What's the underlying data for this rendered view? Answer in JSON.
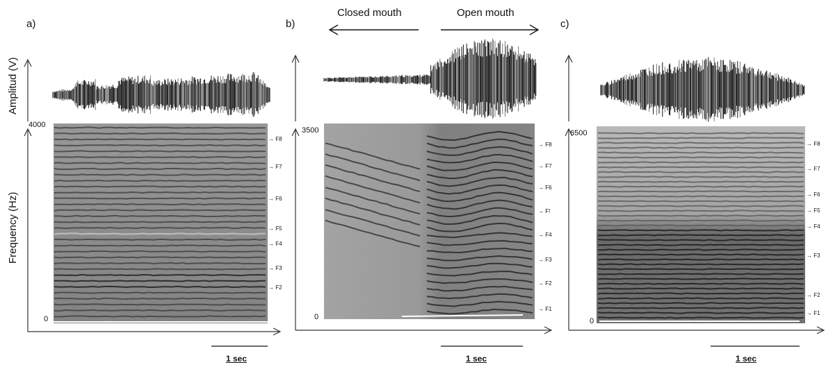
{
  "panels": [
    {
      "letter": "a)",
      "freq_top": "4000",
      "freq_bottom": "0",
      "formants": [
        "F8",
        "F7",
        "F6",
        "F5",
        "F4",
        "F3",
        "F2"
      ],
      "formant_levels": [
        0.92,
        0.78,
        0.62,
        0.47,
        0.39,
        0.27,
        0.17
      ],
      "scale_bar": "1 sec"
    },
    {
      "letter": "b)",
      "freq_top": "3500",
      "freq_bottom": "0",
      "formants": [
        "F8",
        "F7",
        "F6",
        "F!",
        "F4",
        "F3",
        "F2",
        "F1"
      ],
      "formant_levels": [
        0.89,
        0.78,
        0.67,
        0.55,
        0.43,
        0.3,
        0.18,
        0.05
      ],
      "scale_bar": "1 sec"
    },
    {
      "letter": "c)",
      "freq_top": "6500",
      "freq_bottom": "0",
      "formants": [
        "F8",
        "F7",
        "F6",
        "F5",
        "F4",
        "F3",
        "F2",
        "F1"
      ],
      "formant_levels": [
        0.91,
        0.78,
        0.65,
        0.57,
        0.49,
        0.34,
        0.14,
        0.05
      ],
      "scale_bar": "1 sec"
    }
  ],
  "axis_labels": {
    "amplitude": "Amplitud (V)",
    "frequency": "Frequency (Hz)"
  },
  "mouth": {
    "closed": "Closed mouth",
    "open": "Open mouth"
  },
  "colors": {
    "ink": "#111111",
    "axis": "#333333"
  }
}
